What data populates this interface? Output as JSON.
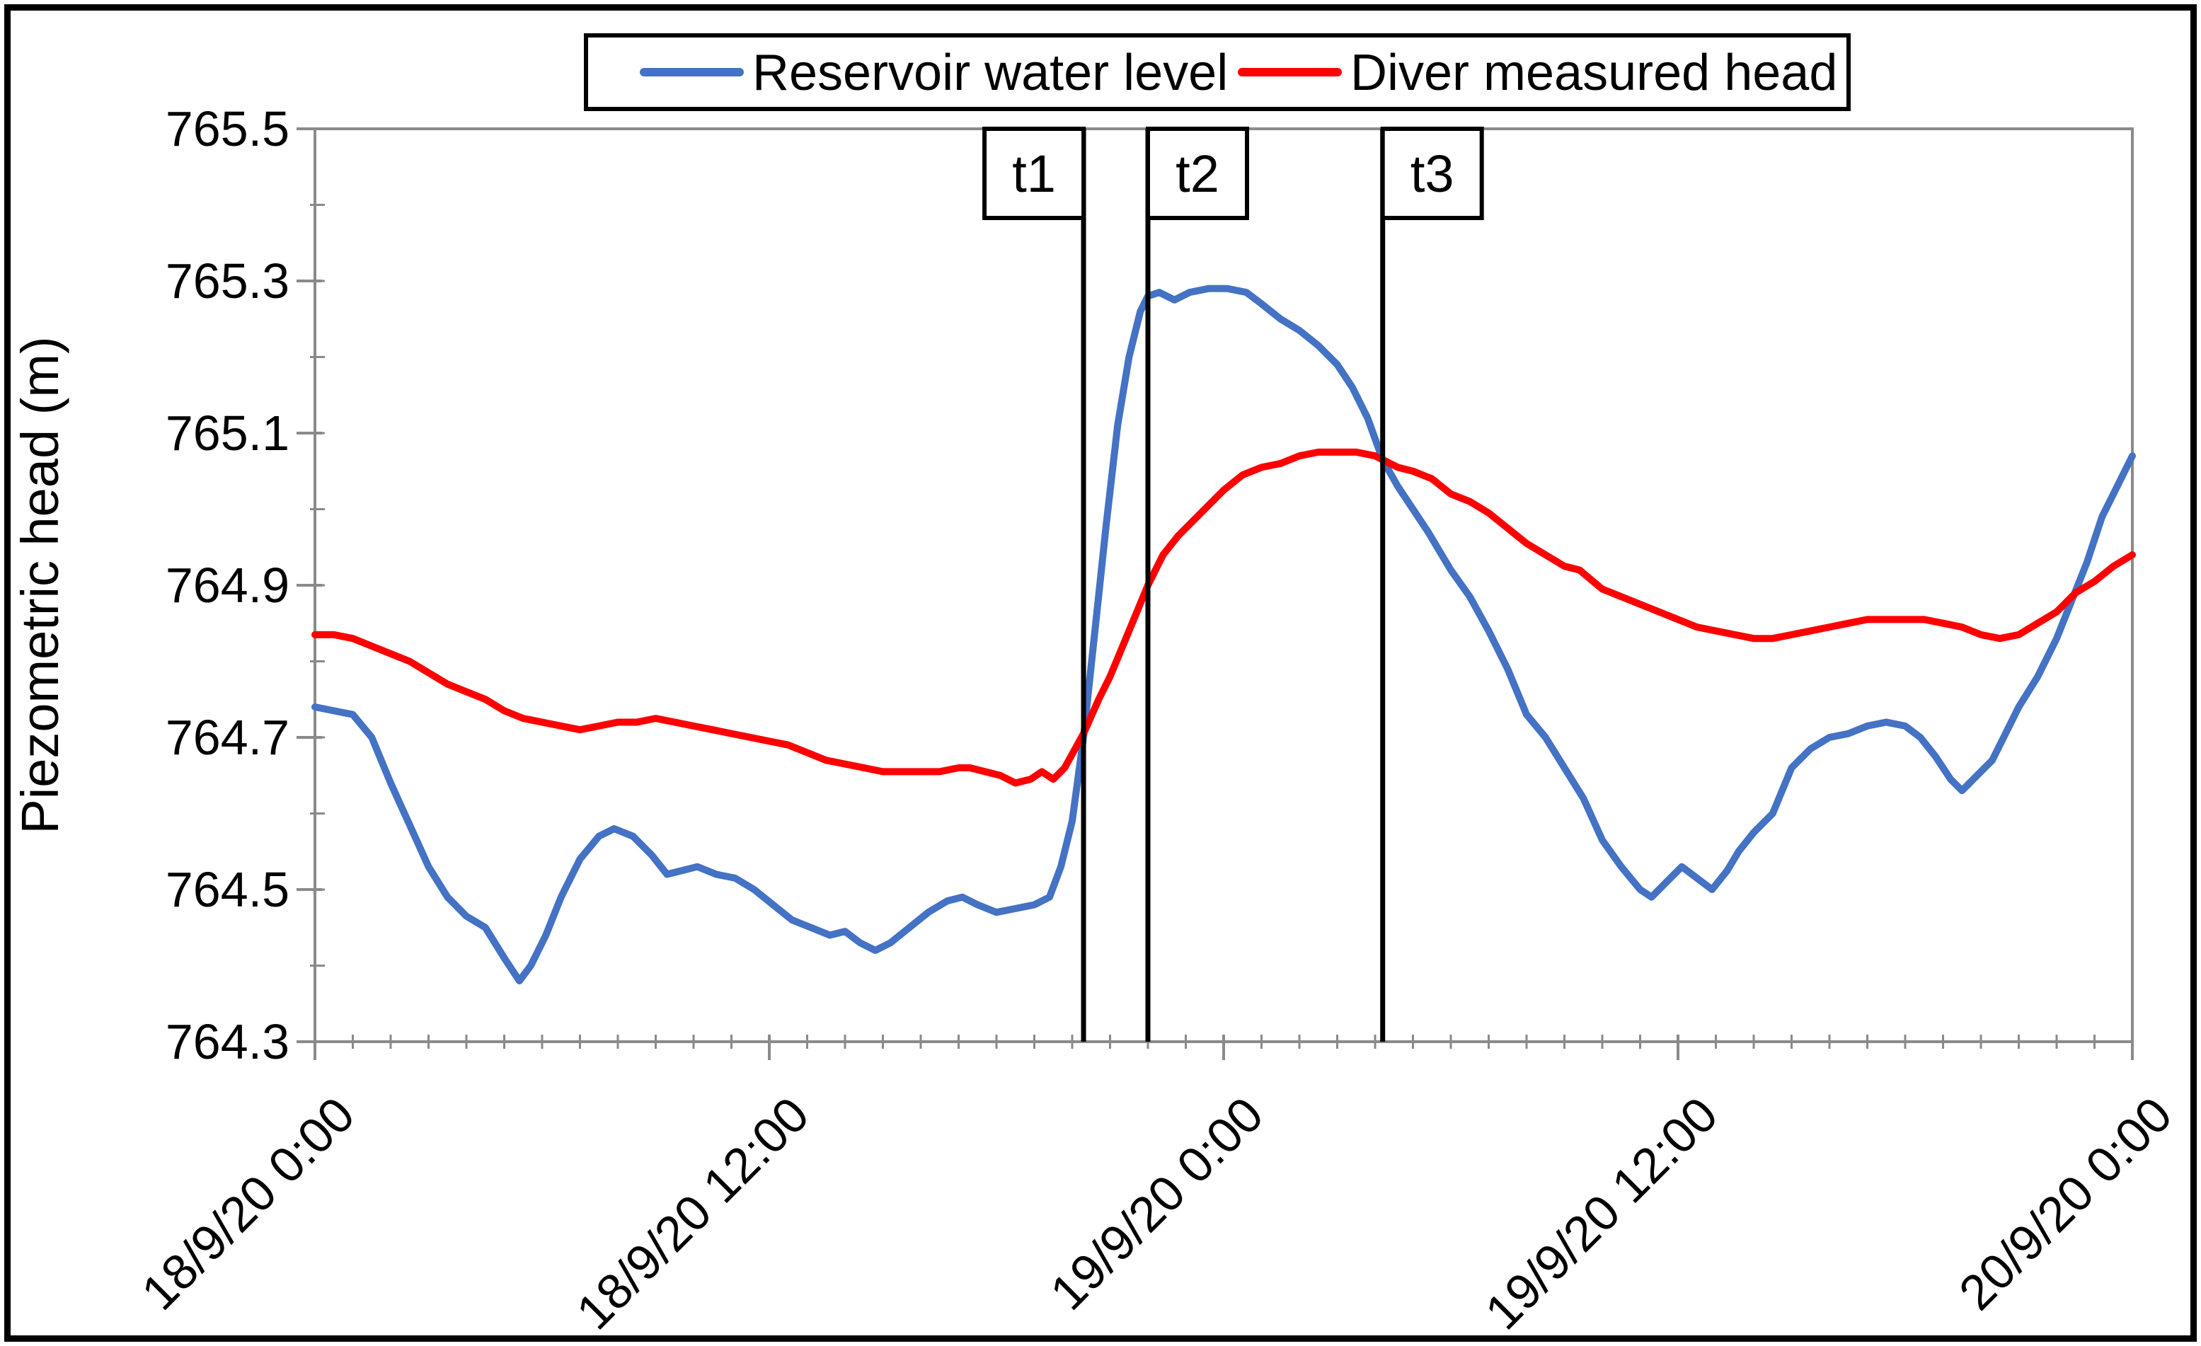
{
  "chart_data": {
    "type": "line",
    "title": "",
    "xlabel": "",
    "ylabel": "Piezometric head (m)",
    "ylim": [
      764.3,
      765.5
    ],
    "xlim_hours": [
      0,
      48
    ],
    "grid": false,
    "legend_position": "top-center",
    "y_ticks": [
      {
        "v": 765.5,
        "label": "765.5"
      },
      {
        "v": 765.3,
        "label": "765.3"
      },
      {
        "v": 765.1,
        "label": "765.1"
      },
      {
        "v": 764.9,
        "label": "764.9"
      },
      {
        "v": 764.7,
        "label": "764.7"
      },
      {
        "v": 764.5,
        "label": "764.5"
      },
      {
        "v": 764.3,
        "label": "764.3"
      }
    ],
    "y_minor_step": 0.1,
    "x_ticks": [
      {
        "t": 0,
        "label": "18/9/20 0:00"
      },
      {
        "t": 12,
        "label": "18/9/20 12:00"
      },
      {
        "t": 24,
        "label": "19/9/20 0:00"
      },
      {
        "t": 36,
        "label": "19/9/20 12:00"
      },
      {
        "t": 48,
        "label": "20/9/20 0:00"
      }
    ],
    "x_minor_step_hours": 1,
    "annotations": [
      {
        "label": "t1",
        "t": 20.3,
        "box_side": "left"
      },
      {
        "label": "t2",
        "t": 22.0,
        "box_side": "right"
      },
      {
        "label": "t3",
        "t": 28.2,
        "box_side": "right"
      }
    ],
    "series": [
      {
        "name": "Reservoir water level",
        "color": "#4472C4",
        "points": [
          [
            0,
            764.74
          ],
          [
            0.5,
            764.735
          ],
          [
            1,
            764.73
          ],
          [
            1.5,
            764.7
          ],
          [
            2,
            764.64
          ],
          [
            2.5,
            764.585
          ],
          [
            3,
            764.53
          ],
          [
            3.5,
            764.49
          ],
          [
            4,
            764.465
          ],
          [
            4.5,
            764.45
          ],
          [
            5,
            764.41
          ],
          [
            5.4,
            764.38
          ],
          [
            5.7,
            764.4
          ],
          [
            6.1,
            764.44
          ],
          [
            6.5,
            764.49
          ],
          [
            7,
            764.54
          ],
          [
            7.5,
            764.57
          ],
          [
            7.9,
            764.58
          ],
          [
            8.4,
            764.57
          ],
          [
            8.9,
            764.545
          ],
          [
            9.3,
            764.52
          ],
          [
            9.7,
            764.525
          ],
          [
            10.1,
            764.53
          ],
          [
            10.6,
            764.52
          ],
          [
            11.1,
            764.515
          ],
          [
            11.6,
            764.5
          ],
          [
            12.1,
            764.48
          ],
          [
            12.6,
            764.46
          ],
          [
            13.1,
            764.45
          ],
          [
            13.6,
            764.44
          ],
          [
            14,
            764.445
          ],
          [
            14.4,
            764.43
          ],
          [
            14.8,
            764.42
          ],
          [
            15.2,
            764.43
          ],
          [
            15.7,
            764.45
          ],
          [
            16.2,
            764.47
          ],
          [
            16.7,
            764.485
          ],
          [
            17.1,
            764.49
          ],
          [
            17.5,
            764.48
          ],
          [
            18,
            764.47
          ],
          [
            18.5,
            764.475
          ],
          [
            19,
            764.48
          ],
          [
            19.4,
            764.49
          ],
          [
            19.7,
            764.53
          ],
          [
            20,
            764.59
          ],
          [
            20.3,
            764.7
          ],
          [
            20.6,
            764.84
          ],
          [
            20.9,
            764.98
          ],
          [
            21.2,
            765.11
          ],
          [
            21.5,
            765.2
          ],
          [
            21.8,
            765.26
          ],
          [
            22,
            765.28
          ],
          [
            22.3,
            765.285
          ],
          [
            22.7,
            765.275
          ],
          [
            23.1,
            765.285
          ],
          [
            23.6,
            765.29
          ],
          [
            24.1,
            765.29
          ],
          [
            24.6,
            765.285
          ],
          [
            25,
            765.27
          ],
          [
            25.5,
            765.25
          ],
          [
            26,
            765.235
          ],
          [
            26.5,
            765.215
          ],
          [
            27,
            765.19
          ],
          [
            27.4,
            765.16
          ],
          [
            27.8,
            765.12
          ],
          [
            28.2,
            765.065
          ],
          [
            28.6,
            765.03
          ],
          [
            29,
            765.0
          ],
          [
            29.4,
            764.97
          ],
          [
            30,
            764.92
          ],
          [
            30.5,
            764.885
          ],
          [
            31,
            764.84
          ],
          [
            31.5,
            764.79
          ],
          [
            32,
            764.73
          ],
          [
            32.5,
            764.7
          ],
          [
            33,
            764.66
          ],
          [
            33.5,
            764.62
          ],
          [
            34,
            764.565
          ],
          [
            34.5,
            764.53
          ],
          [
            35,
            764.5
          ],
          [
            35.3,
            764.49
          ],
          [
            35.7,
            764.51
          ],
          [
            36.1,
            764.53
          ],
          [
            36.5,
            764.515
          ],
          [
            36.9,
            764.5
          ],
          [
            37.3,
            764.525
          ],
          [
            37.6,
            764.55
          ],
          [
            38,
            764.575
          ],
          [
            38.5,
            764.6
          ],
          [
            39,
            764.66
          ],
          [
            39.5,
            764.685
          ],
          [
            40,
            764.7
          ],
          [
            40.5,
            764.705
          ],
          [
            41,
            764.715
          ],
          [
            41.5,
            764.72
          ],
          [
            42,
            764.715
          ],
          [
            42.4,
            764.7
          ],
          [
            42.8,
            764.675
          ],
          [
            43.2,
            764.645
          ],
          [
            43.5,
            764.63
          ],
          [
            43.9,
            764.65
          ],
          [
            44.3,
            764.67
          ],
          [
            44.7,
            764.71
          ],
          [
            45,
            764.74
          ],
          [
            45.5,
            764.78
          ],
          [
            46,
            764.83
          ],
          [
            46.4,
            764.88
          ],
          [
            46.8,
            764.93
          ],
          [
            47.2,
            764.99
          ],
          [
            47.6,
            765.03
          ],
          [
            48,
            765.07
          ]
        ]
      },
      {
        "name": "Diver measured head",
        "color": "#FF0000",
        "points": [
          [
            0,
            764.835
          ],
          [
            0.5,
            764.835
          ],
          [
            1,
            764.83
          ],
          [
            1.5,
            764.82
          ],
          [
            2,
            764.81
          ],
          [
            2.5,
            764.8
          ],
          [
            3,
            764.785
          ],
          [
            3.5,
            764.77
          ],
          [
            4,
            764.76
          ],
          [
            4.5,
            764.75
          ],
          [
            5,
            764.735
          ],
          [
            5.5,
            764.725
          ],
          [
            6,
            764.72
          ],
          [
            6.5,
            764.715
          ],
          [
            7,
            764.71
          ],
          [
            7.5,
            764.715
          ],
          [
            8,
            764.72
          ],
          [
            8.5,
            764.72
          ],
          [
            9,
            764.725
          ],
          [
            9.5,
            764.72
          ],
          [
            10,
            764.715
          ],
          [
            10.5,
            764.71
          ],
          [
            11,
            764.705
          ],
          [
            11.5,
            764.7
          ],
          [
            12,
            764.695
          ],
          [
            12.5,
            764.69
          ],
          [
            13,
            764.68
          ],
          [
            13.5,
            764.67
          ],
          [
            14,
            764.665
          ],
          [
            14.5,
            764.66
          ],
          [
            15,
            764.655
          ],
          [
            15.5,
            764.655
          ],
          [
            16,
            764.655
          ],
          [
            16.5,
            764.655
          ],
          [
            17,
            764.66
          ],
          [
            17.3,
            764.66
          ],
          [
            17.7,
            764.655
          ],
          [
            18.1,
            764.65
          ],
          [
            18.5,
            764.64
          ],
          [
            18.9,
            764.645
          ],
          [
            19.2,
            764.655
          ],
          [
            19.5,
            764.645
          ],
          [
            19.8,
            764.66
          ],
          [
            20.3,
            764.705
          ],
          [
            20.7,
            764.75
          ],
          [
            21,
            764.78
          ],
          [
            21.5,
            764.84
          ],
          [
            22,
            764.9
          ],
          [
            22.4,
            764.94
          ],
          [
            22.8,
            764.965
          ],
          [
            23.2,
            764.985
          ],
          [
            23.6,
            765.005
          ],
          [
            24,
            765.025
          ],
          [
            24.5,
            765.045
          ],
          [
            25,
            765.055
          ],
          [
            25.5,
            765.06
          ],
          [
            26,
            765.07
          ],
          [
            26.5,
            765.075
          ],
          [
            27,
            765.075
          ],
          [
            27.5,
            765.075
          ],
          [
            28,
            765.07
          ],
          [
            28.2,
            765.065
          ],
          [
            28.6,
            765.055
          ],
          [
            29,
            765.05
          ],
          [
            29.5,
            765.04
          ],
          [
            30,
            765.02
          ],
          [
            30.5,
            765.01
          ],
          [
            31,
            764.995
          ],
          [
            31.5,
            764.975
          ],
          [
            32,
            764.955
          ],
          [
            32.5,
            764.94
          ],
          [
            33,
            764.925
          ],
          [
            33.4,
            764.92
          ],
          [
            34,
            764.895
          ],
          [
            34.5,
            764.885
          ],
          [
            35,
            764.875
          ],
          [
            35.5,
            764.865
          ],
          [
            36,
            764.855
          ],
          [
            36.5,
            764.845
          ],
          [
            37,
            764.84
          ],
          [
            37.5,
            764.835
          ],
          [
            38,
            764.83
          ],
          [
            38.5,
            764.83
          ],
          [
            39,
            764.835
          ],
          [
            39.5,
            764.84
          ],
          [
            40,
            764.845
          ],
          [
            40.5,
            764.85
          ],
          [
            41,
            764.855
          ],
          [
            41.5,
            764.855
          ],
          [
            42,
            764.855
          ],
          [
            42.5,
            764.855
          ],
          [
            43,
            764.85
          ],
          [
            43.5,
            764.845
          ],
          [
            44,
            764.835
          ],
          [
            44.5,
            764.83
          ],
          [
            45,
            764.835
          ],
          [
            45.5,
            764.85
          ],
          [
            46,
            764.865
          ],
          [
            46.5,
            764.89
          ],
          [
            47,
            764.905
          ],
          [
            47.5,
            764.925
          ],
          [
            48,
            764.94
          ]
        ]
      }
    ],
    "palette": {
      "axis_gray": "#8a8a8a",
      "annotation_line": "#000000",
      "text": "#000000",
      "background": "#ffffff",
      "frame_border": "#000000"
    }
  }
}
